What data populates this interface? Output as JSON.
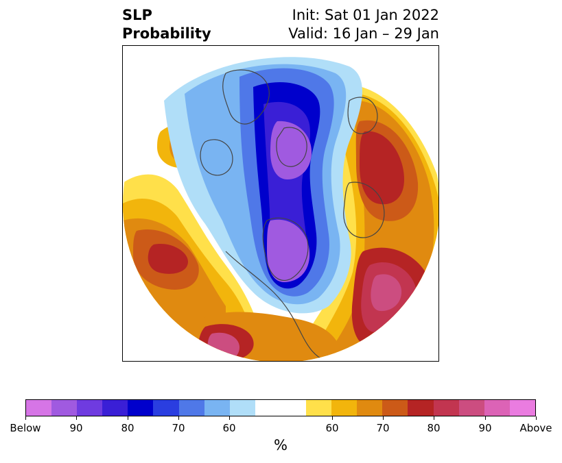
{
  "header": {
    "variable": "SLP",
    "product": "Probability",
    "init": "Init: Sat 01 Jan 2022",
    "valid": "Valid: 16 Jan – 29 Jan"
  },
  "colorbar": {
    "units": "%",
    "colors": [
      "#d675e6",
      "#a05ae0",
      "#6f3be0",
      "#3a1fd6",
      "#0000cc",
      "#2a3ee0",
      "#4f78e8",
      "#79b4f2",
      "#b0def8",
      "#ffffff",
      "#ffffff",
      "#ffe04a",
      "#f2b50c",
      "#e08a10",
      "#cc5a18",
      "#b52424",
      "#c23550",
      "#cc4d80",
      "#dc63b6",
      "#ea7ce0"
    ],
    "tick_labels": [
      "Below",
      "90",
      "80",
      "70",
      "60",
      "60",
      "70",
      "80",
      "90",
      "Above"
    ]
  },
  "map_colors": {
    "ocean_white": "#ffffff",
    "below_light": "#b0def8",
    "below_mid": "#79b4f2",
    "below_blue": "#4f78e8",
    "below_deep": "#0000cc",
    "below_violet": "#a05ae0",
    "above_yellow": "#ffe04a",
    "above_gold": "#f2b50c",
    "above_orange": "#e08a10",
    "above_rust": "#cc5a18",
    "above_red": "#b52424",
    "above_crimson": "#c23550",
    "above_pink": "#cc4d80",
    "coast": "#444444"
  }
}
